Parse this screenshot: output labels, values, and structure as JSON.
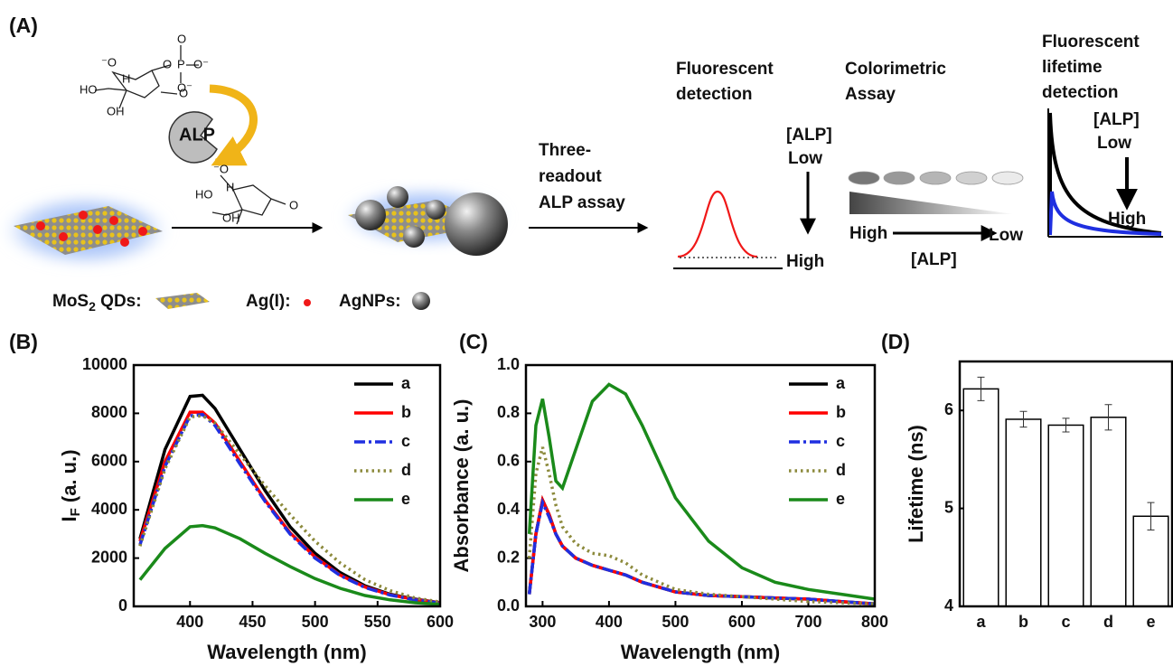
{
  "schematic": {
    "panel_label": "(A)",
    "molecule_1": [
      "⁻O",
      "O",
      "P",
      "O⁻",
      "O",
      "O⁻",
      "HO",
      "H",
      "OH",
      "O"
    ],
    "enzyme": "ALP",
    "molecule_2": [
      "⁻O",
      "HO",
      "H",
      "OH",
      "O"
    ],
    "assay_title": [
      "Three-",
      "readout",
      "ALP assay"
    ],
    "fluorescent_detection": [
      "Fluorescent",
      "detection"
    ],
    "fluorescent_concentration": [
      "[ALP]",
      "Low"
    ],
    "fluorescent_high": "High",
    "colorimetric_assay": [
      "Colorimetric",
      "Assay"
    ],
    "colorimetric_high": "High",
    "colorimetric_low": "Low",
    "colorimetric_axis": "[ALP]",
    "lifetime_detection": [
      "Fluorescent",
      "lifetime",
      "detection"
    ],
    "lifetime_concentration": [
      "[ALP]",
      "Low"
    ],
    "lifetime_high": "High",
    "mos2_label": [
      "MoS",
      "2",
      " QDs:"
    ],
    "ag_label": "Ag(I):",
    "agnp_label": "AgNPs:"
  },
  "chart_data": [
    {
      "type": "line",
      "panel_label": "(B)",
      "xlabel": "Wavelength (nm)",
      "ylabel": [
        "I",
        "F",
        " (a. u.)"
      ],
      "xlim": [
        355,
        600
      ],
      "xticks": [
        400,
        450,
        500,
        550,
        600
      ],
      "ylim": [
        0,
        10000
      ],
      "yticks": [
        0,
        2000,
        4000,
        6000,
        8000,
        10000
      ],
      "legend": "upper right",
      "x": [
        360,
        380,
        400,
        410,
        420,
        440,
        460,
        480,
        500,
        520,
        540,
        560,
        580,
        600
      ],
      "series": [
        {
          "name": "a",
          "color": "#000000",
          "style": "solid",
          "values": [
            2800,
            6500,
            8700,
            8750,
            8200,
            6500,
            4800,
            3300,
            2200,
            1400,
            850,
            500,
            300,
            150
          ]
        },
        {
          "name": "b",
          "color": "#ff0000",
          "style": "solid",
          "values": [
            2700,
            6000,
            8050,
            8050,
            7600,
            6000,
            4400,
            3050,
            2050,
            1300,
            800,
            480,
            280,
            150
          ]
        },
        {
          "name": "c",
          "color": "#1f2fe0",
          "style": "dashdot",
          "values": [
            2550,
            5800,
            7900,
            7950,
            7500,
            5900,
            4350,
            3000,
            2000,
            1280,
            780,
            470,
            270,
            140
          ]
        },
        {
          "name": "d",
          "color": "#8c8a3c",
          "style": "dotted",
          "values": [
            2500,
            5700,
            7850,
            7900,
            7600,
            6300,
            5000,
            3800,
            2700,
            1800,
            1100,
            650,
            350,
            180
          ]
        },
        {
          "name": "e",
          "color": "#1a8a1a",
          "style": "solid",
          "values": [
            1100,
            2400,
            3300,
            3350,
            3250,
            2800,
            2200,
            1650,
            1150,
            750,
            450,
            270,
            150,
            80
          ]
        }
      ]
    },
    {
      "type": "line",
      "panel_label": "(C)",
      "xlabel": "Wavelength (nm)",
      "ylabel": "Absorbance (a. u.)",
      "xlim": [
        275,
        800
      ],
      "xticks": [
        300,
        400,
        500,
        600,
        700,
        800
      ],
      "ylim": [
        0,
        1
      ],
      "yticks": [
        {
          "value": 0,
          "label": "0.0"
        },
        0.2,
        0.4,
        0.6,
        0.8,
        {
          "value": 1,
          "label": "1.0"
        }
      ],
      "legend": "upper right",
      "x": [
        280,
        290,
        300,
        310,
        320,
        330,
        350,
        375,
        400,
        425,
        450,
        500,
        550,
        600,
        650,
        700,
        750,
        800
      ],
      "series": [
        {
          "name": "a",
          "color": "#000000",
          "style": "solid",
          "values": [
            0.05,
            0.3,
            0.44,
            0.38,
            0.3,
            0.25,
            0.2,
            0.17,
            0.15,
            0.13,
            0.1,
            0.06,
            0.045,
            0.04,
            0.035,
            0.03,
            0.02,
            0.01
          ]
        },
        {
          "name": "b",
          "color": "#ff0000",
          "style": "solid",
          "values": [
            0.05,
            0.3,
            0.44,
            0.38,
            0.3,
            0.25,
            0.2,
            0.17,
            0.15,
            0.13,
            0.1,
            0.06,
            0.045,
            0.04,
            0.035,
            0.03,
            0.02,
            0.01
          ]
        },
        {
          "name": "c",
          "color": "#1f2fe0",
          "style": "dashdot",
          "values": [
            0.05,
            0.3,
            0.43,
            0.37,
            0.3,
            0.25,
            0.2,
            0.17,
            0.15,
            0.13,
            0.1,
            0.06,
            0.045,
            0.04,
            0.035,
            0.03,
            0.02,
            0.01
          ]
        },
        {
          "name": "d",
          "color": "#8c8a3c",
          "style": "dotted",
          "values": [
            0.2,
            0.55,
            0.66,
            0.55,
            0.42,
            0.33,
            0.26,
            0.22,
            0.21,
            0.18,
            0.13,
            0.07,
            0.05,
            0.04,
            0.03,
            0.02,
            0.015,
            0.01
          ]
        },
        {
          "name": "e",
          "color": "#1a8a1a",
          "style": "solid",
          "values": [
            0.3,
            0.75,
            0.86,
            0.7,
            0.52,
            0.49,
            0.65,
            0.85,
            0.92,
            0.88,
            0.75,
            0.45,
            0.27,
            0.16,
            0.1,
            0.07,
            0.05,
            0.03
          ]
        }
      ]
    },
    {
      "type": "bar",
      "panel_label": "(D)",
      "ylabel": "Lifetime (ns)",
      "ylim": [
        4,
        6.5
      ],
      "yticks": [
        4,
        5,
        6
      ],
      "categories": [
        "a",
        "b",
        "c",
        "d",
        "e"
      ],
      "values": [
        6.22,
        5.91,
        5.85,
        5.93,
        4.92
      ],
      "errors": [
        0.12,
        0.08,
        0.07,
        0.13,
        0.14
      ],
      "color": "#ffffff"
    }
  ]
}
